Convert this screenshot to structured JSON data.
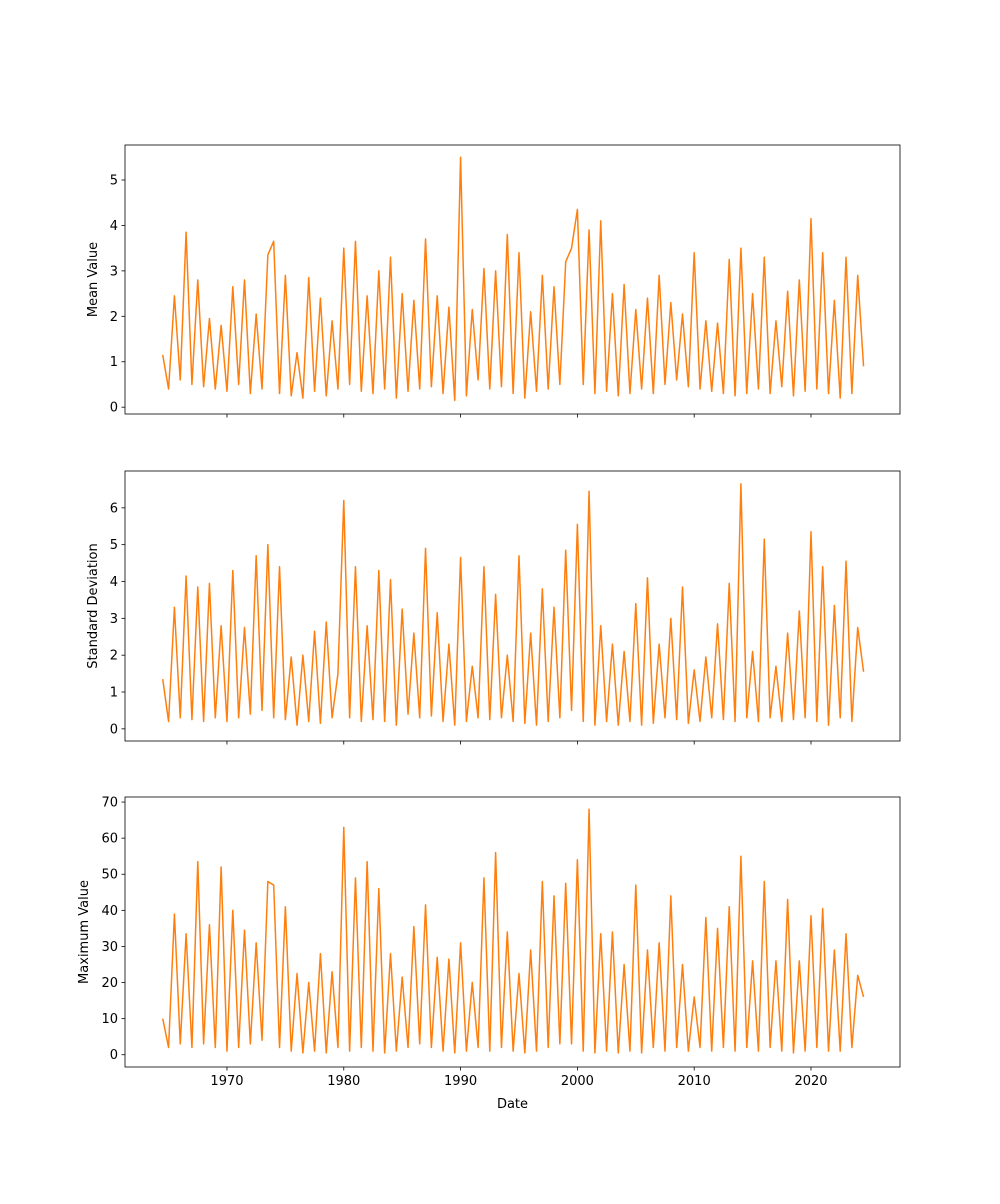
{
  "chart_data": [
    {
      "type": "line",
      "ylabel": "Mean Value",
      "color": "#ff7f0e",
      "x": [
        1964.5,
        1965,
        1965.5,
        1966,
        1966.5,
        1967,
        1967.5,
        1968,
        1968.5,
        1969,
        1969.5,
        1970,
        1970.5,
        1971,
        1971.5,
        1972,
        1972.5,
        1973,
        1973.5,
        1974,
        1974.5,
        1975,
        1975.5,
        1976,
        1976.5,
        1977,
        1977.5,
        1978,
        1978.5,
        1979,
        1979.5,
        1980,
        1980.5,
        1981,
        1981.5,
        1982,
        1982.5,
        1983,
        1983.5,
        1984,
        1984.5,
        1985,
        1985.5,
        1986,
        1986.5,
        1987,
        1987.5,
        1988,
        1988.5,
        1989,
        1989.5,
        1990,
        1990.5,
        1991,
        1991.5,
        1992,
        1992.5,
        1993,
        1993.5,
        1994,
        1994.5,
        1995,
        1995.5,
        1996,
        1996.5,
        1997,
        1997.5,
        1998,
        1998.5,
        1999,
        1999.5,
        2000,
        2000.5,
        2001,
        2001.5,
        2002,
        2002.5,
        2003,
        2003.5,
        2004,
        2004.5,
        2005,
        2005.5,
        2006,
        2006.5,
        2007,
        2007.5,
        2008,
        2008.5,
        2009,
        2009.5,
        2010,
        2010.5,
        2011,
        2011.5,
        2012,
        2012.5,
        2013,
        2013.5,
        2014,
        2014.5,
        2015,
        2015.5,
        2016,
        2016.5,
        2017,
        2017.5,
        2018,
        2018.5,
        2019,
        2019.5,
        2020,
        2020.5,
        2021,
        2021.5,
        2022,
        2022.5,
        2023,
        2023.5,
        2024,
        2024.5
      ],
      "values": [
        1.15,
        0.4,
        2.45,
        0.6,
        3.85,
        0.5,
        2.8,
        0.45,
        1.95,
        0.4,
        1.8,
        0.35,
        2.65,
        0.5,
        2.8,
        0.3,
        2.05,
        0.4,
        3.35,
        3.65,
        0.3,
        2.9,
        0.25,
        1.2,
        0.2,
        2.85,
        0.35,
        2.4,
        0.25,
        1.9,
        0.4,
        3.5,
        0.5,
        3.65,
        0.35,
        2.45,
        0.3,
        3.0,
        0.4,
        3.3,
        0.2,
        2.5,
        0.35,
        2.35,
        0.4,
        3.7,
        0.45,
        2.45,
        0.3,
        2.2,
        0.15,
        5.5,
        0.25,
        2.15,
        0.6,
        3.05,
        0.4,
        3.0,
        0.45,
        3.8,
        0.3,
        3.4,
        0.2,
        2.1,
        0.35,
        2.9,
        0.4,
        2.65,
        0.5,
        3.2,
        3.5,
        4.35,
        0.5,
        3.9,
        0.3,
        4.1,
        0.35,
        2.5,
        0.25,
        2.7,
        0.3,
        2.15,
        0.4,
        2.4,
        0.3,
        2.9,
        0.5,
        2.3,
        0.6,
        2.05,
        0.45,
        3.4,
        0.4,
        1.9,
        0.35,
        1.85,
        0.3,
        3.25,
        0.25,
        3.5,
        0.3,
        2.5,
        0.4,
        3.3,
        0.3,
        1.9,
        0.45,
        2.55,
        0.25,
        2.8,
        0.35,
        4.15,
        0.4,
        3.4,
        0.3,
        2.35,
        0.2,
        3.3,
        0.3,
        2.9,
        0.9
      ],
      "xlim": [
        1961.27,
        2027.62
      ],
      "xticks": [
        1970,
        1980,
        1990,
        2000,
        2010,
        2020
      ],
      "ylim": [
        -0.15,
        5.77
      ],
      "yticks": [
        0,
        1,
        2,
        3,
        4,
        5
      ]
    },
    {
      "type": "line",
      "ylabel": "Standard Deviation",
      "color": "#ff7f0e",
      "x": [
        1964.5,
        1965,
        1965.5,
        1966,
        1966.5,
        1967,
        1967.5,
        1968,
        1968.5,
        1969,
        1969.5,
        1970,
        1970.5,
        1971,
        1971.5,
        1972,
        1972.5,
        1973,
        1973.5,
        1974,
        1974.5,
        1975,
        1975.5,
        1976,
        1976.5,
        1977,
        1977.5,
        1978,
        1978.5,
        1979,
        1979.5,
        1980,
        1980.5,
        1981,
        1981.5,
        1982,
        1982.5,
        1983,
        1983.5,
        1984,
        1984.5,
        1985,
        1985.5,
        1986,
        1986.5,
        1987,
        1987.5,
        1988,
        1988.5,
        1989,
        1989.5,
        1990,
        1990.5,
        1991,
        1991.5,
        1992,
        1992.5,
        1993,
        1993.5,
        1994,
        1994.5,
        1995,
        1995.5,
        1996,
        1996.5,
        1997,
        1997.5,
        1998,
        1998.5,
        1999,
        1999.5,
        2000,
        2000.5,
        2001,
        2001.5,
        2002,
        2002.5,
        2003,
        2003.5,
        2004,
        2004.5,
        2005,
        2005.5,
        2006,
        2006.5,
        2007,
        2007.5,
        2008,
        2008.5,
        2009,
        2009.5,
        2010,
        2010.5,
        2011,
        2011.5,
        2012,
        2012.5,
        2013,
        2013.5,
        2014,
        2014.5,
        2015,
        2015.5,
        2016,
        2016.5,
        2017,
        2017.5,
        2018,
        2018.5,
        2019,
        2019.5,
        2020,
        2020.5,
        2021,
        2021.5,
        2022,
        2022.5,
        2023,
        2023.5,
        2024,
        2024.5
      ],
      "values": [
        1.35,
        0.2,
        3.3,
        0.3,
        4.15,
        0.25,
        3.85,
        0.2,
        3.95,
        0.3,
        2.8,
        0.2,
        4.3,
        0.3,
        2.75,
        0.4,
        4.7,
        0.5,
        5.0,
        0.3,
        4.4,
        0.25,
        1.95,
        0.1,
        2.0,
        0.2,
        2.65,
        0.15,
        2.9,
        0.3,
        1.5,
        6.2,
        0.3,
        4.4,
        0.2,
        2.8,
        0.25,
        4.3,
        0.2,
        4.05,
        0.1,
        3.25,
        0.4,
        2.6,
        0.3,
        4.9,
        0.35,
        3.15,
        0.2,
        2.3,
        0.1,
        4.65,
        0.2,
        1.7,
        0.3,
        4.4,
        0.25,
        3.65,
        0.3,
        2.0,
        0.2,
        4.7,
        0.15,
        2.6,
        0.1,
        3.8,
        0.2,
        3.3,
        0.3,
        4.85,
        0.5,
        5.55,
        0.2,
        6.45,
        0.1,
        2.8,
        0.2,
        2.3,
        0.1,
        2.1,
        0.2,
        3.4,
        0.1,
        4.1,
        0.15,
        2.3,
        0.3,
        3.0,
        0.25,
        3.85,
        0.15,
        1.6,
        0.2,
        1.95,
        0.3,
        2.85,
        0.25,
        3.95,
        0.2,
        6.65,
        0.3,
        2.1,
        0.2,
        5.15,
        0.3,
        1.7,
        0.2,
        2.6,
        0.25,
        3.2,
        0.3,
        5.35,
        0.2,
        4.4,
        0.1,
        3.35,
        0.3,
        4.55,
        0.2,
        2.75,
        1.55
      ],
      "xlim": [
        1961.27,
        2027.62
      ],
      "xticks": [
        1970,
        1980,
        1990,
        2000,
        2010,
        2020
      ],
      "ylim": [
        -0.33,
        7.0
      ],
      "yticks": [
        0,
        1,
        2,
        3,
        4,
        5,
        6
      ]
    },
    {
      "type": "line",
      "ylabel": "Maximum Value",
      "xlabel": "Date",
      "color": "#ff7f0e",
      "x": [
        1964.5,
        1965,
        1965.5,
        1966,
        1966.5,
        1967,
        1967.5,
        1968,
        1968.5,
        1969,
        1969.5,
        1970,
        1970.5,
        1971,
        1971.5,
        1972,
        1972.5,
        1973,
        1973.5,
        1974,
        1974.5,
        1975,
        1975.5,
        1976,
        1976.5,
        1977,
        1977.5,
        1978,
        1978.5,
        1979,
        1979.5,
        1980,
        1980.5,
        1981,
        1981.5,
        1982,
        1982.5,
        1983,
        1983.5,
        1984,
        1984.5,
        1985,
        1985.5,
        1986,
        1986.5,
        1987,
        1987.5,
        1988,
        1988.5,
        1989,
        1989.5,
        1990,
        1990.5,
        1991,
        1991.5,
        1992,
        1992.5,
        1993,
        1993.5,
        1994,
        1994.5,
        1995,
        1995.5,
        1996,
        1996.5,
        1997,
        1997.5,
        1998,
        1998.5,
        1999,
        1999.5,
        2000,
        2000.5,
        2001,
        2001.5,
        2002,
        2002.5,
        2003,
        2003.5,
        2004,
        2004.5,
        2005,
        2005.5,
        2006,
        2006.5,
        2007,
        2007.5,
        2008,
        2008.5,
        2009,
        2009.5,
        2010,
        2010.5,
        2011,
        2011.5,
        2012,
        2012.5,
        2013,
        2013.5,
        2014,
        2014.5,
        2015,
        2015.5,
        2016,
        2016.5,
        2017,
        2017.5,
        2018,
        2018.5,
        2019,
        2019.5,
        2020,
        2020.5,
        2021,
        2021.5,
        2022,
        2022.5,
        2023,
        2023.5,
        2024,
        2024.5
      ],
      "values": [
        10,
        2,
        39,
        3,
        33.5,
        2,
        53.5,
        3,
        36,
        2,
        52,
        1,
        40,
        2,
        34.5,
        3,
        31,
        4,
        48,
        47,
        2,
        41,
        1,
        22.5,
        0.5,
        20,
        1,
        28,
        0.5,
        23,
        2,
        63,
        1,
        49,
        2,
        53.5,
        1,
        46,
        0.5,
        28,
        1,
        21.5,
        2,
        35.5,
        3,
        41.5,
        2,
        27,
        1,
        26.5,
        0.5,
        31,
        1,
        20,
        2,
        49,
        1,
        56,
        2,
        34,
        1,
        22.5,
        0.5,
        29,
        1,
        48,
        2,
        44,
        3,
        47.5,
        3,
        54,
        1,
        68,
        0.5,
        33.5,
        1,
        34,
        0.5,
        25,
        1,
        47,
        0.5,
        29,
        2,
        31,
        1,
        44,
        2,
        25,
        1,
        16,
        2,
        38,
        1,
        35,
        2,
        41,
        1,
        55,
        2,
        26,
        1,
        48,
        2,
        26,
        1,
        43,
        0.5,
        26,
        1,
        38.5,
        2,
        40.5,
        1,
        29,
        1,
        33.5,
        2,
        22,
        16
      ],
      "xlim": [
        1961.27,
        2027.62
      ],
      "xticks": [
        1970,
        1980,
        1990,
        2000,
        2010,
        2020
      ],
      "ylim": [
        -3.4,
        71.4
      ],
      "yticks": [
        0,
        10,
        20,
        30,
        40,
        50,
        60,
        70
      ]
    }
  ]
}
